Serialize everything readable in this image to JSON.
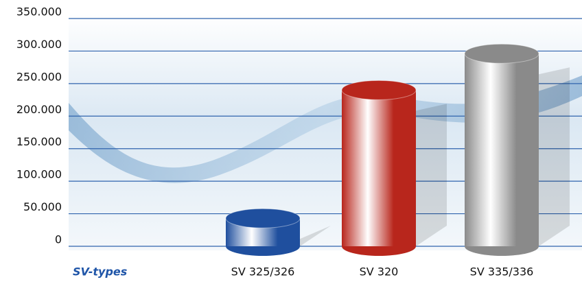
{
  "chart_data": {
    "type": "cylinder",
    "categories": [
      "SV 325/326",
      "SV 320",
      "SV 335/336"
    ],
    "values": [
      43000,
      240000,
      296000
    ],
    "colors": [
      "#1f4f9e",
      "#b8261c",
      "#8a8a8a"
    ],
    "x_label": "SV-types",
    "ylim": [
      0,
      350000
    ],
    "yticks": [
      0,
      {
        "value": 50000,
        "label": "50.000"
      },
      {
        "value": 100000,
        "label": "100.000"
      },
      {
        "value": 150000,
        "label": "150.000"
      },
      {
        "value": 200000,
        "label": "200.000"
      },
      {
        "value": 250000,
        "label": "250.000"
      },
      {
        "value": 300000,
        "label": "300.000"
      },
      {
        "value": 350000,
        "label": "350.000"
      }
    ],
    "grid": true
  }
}
